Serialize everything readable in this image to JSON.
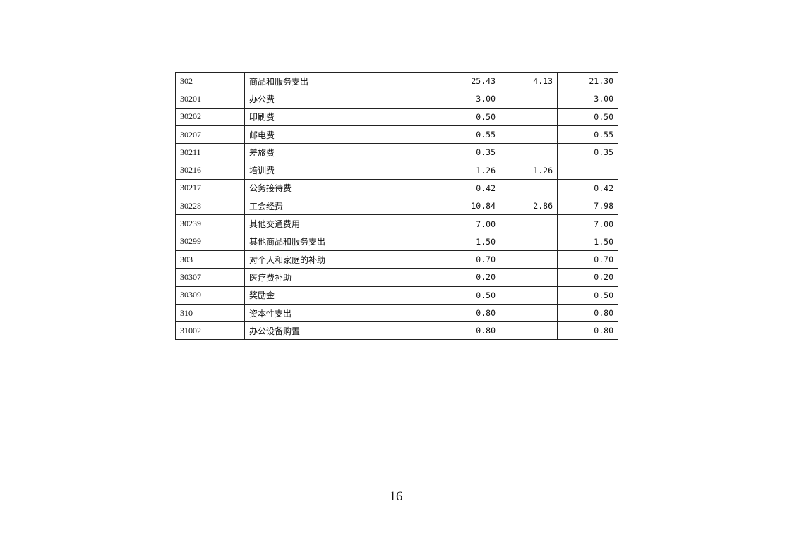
{
  "table": {
    "rows": [
      [
        "302",
        "商品和服务支出",
        "25.43",
        "4.13",
        "21.30"
      ],
      [
        "30201",
        "办公费",
        "3.00",
        "",
        "3.00"
      ],
      [
        "30202",
        "印刷费",
        "0.50",
        "",
        "0.50"
      ],
      [
        "30207",
        "邮电费",
        "0.55",
        "",
        "0.55"
      ],
      [
        "30211",
        "差旅费",
        "0.35",
        "",
        "0.35"
      ],
      [
        "30216",
        "培训费",
        "1.26",
        "1.26",
        ""
      ],
      [
        "30217",
        "公务接待费",
        "0.42",
        "",
        "0.42"
      ],
      [
        "30228",
        "工会经费",
        "10.84",
        "2.86",
        "7.98"
      ],
      [
        "30239",
        "其他交通费用",
        "7.00",
        "",
        "7.00"
      ],
      [
        "30299",
        "其他商品和服务支出",
        "1.50",
        "",
        "1.50"
      ],
      [
        "303",
        "对个人和家庭的补助",
        "0.70",
        "",
        "0.70"
      ],
      [
        "30307",
        "医疗费补助",
        "0.20",
        "",
        "0.20"
      ],
      [
        "30309",
        "奖励金",
        "0.50",
        "",
        "0.50"
      ],
      [
        "310",
        "资本性支出",
        "0.80",
        "",
        "0.80"
      ],
      [
        "31002",
        "办公设备购置",
        "0.80",
        "",
        "0.80"
      ]
    ]
  },
  "page_number": "16"
}
